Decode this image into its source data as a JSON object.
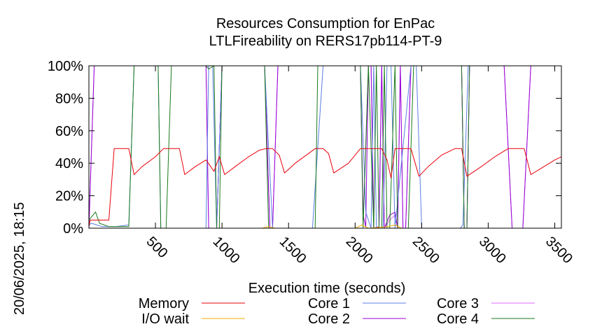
{
  "chart_data": {
    "type": "line",
    "title": "Resources Consumption for EnPac",
    "subtitle": "LTLFireability on RERS17pb114-PT-9",
    "xlabel": "Execution time (seconds)",
    "ylabel": "",
    "side_label": "20/06/2025, 18:15",
    "xlim": [
      0,
      3550
    ],
    "ylim": [
      0,
      100
    ],
    "x_ticks": [
      500,
      1000,
      1500,
      2000,
      2500,
      3000,
      3500
    ],
    "x_tick_labels": [
      "500",
      "1000",
      "1500",
      "2000",
      "2500",
      "3000",
      "3500"
    ],
    "y_ticks": [
      0,
      20,
      40,
      60,
      80,
      100
    ],
    "y_tick_labels": [
      "0%",
      "20%",
      "40%",
      "60%",
      "80%",
      "100%"
    ],
    "legend_placement": "bottom",
    "series": [
      {
        "name": "Memory",
        "color": "#e8000b",
        "points": [
          [
            0,
            1
          ],
          [
            10,
            5
          ],
          [
            150,
            5
          ],
          [
            190,
            49
          ],
          [
            300,
            49
          ],
          [
            340,
            33
          ],
          [
            400,
            38
          ],
          [
            500,
            44
          ],
          [
            560,
            49
          ],
          [
            680,
            49
          ],
          [
            720,
            33
          ],
          [
            800,
            38
          ],
          [
            880,
            42
          ],
          [
            940,
            35
          ],
          [
            980,
            44
          ],
          [
            1020,
            33
          ],
          [
            1100,
            38
          ],
          [
            1200,
            44
          ],
          [
            1280,
            48
          ],
          [
            1330,
            49
          ],
          [
            1380,
            49
          ],
          [
            1430,
            45
          ],
          [
            1470,
            34
          ],
          [
            1550,
            40
          ],
          [
            1650,
            46
          ],
          [
            1700,
            49
          ],
          [
            1760,
            49
          ],
          [
            1800,
            46
          ],
          [
            1840,
            34
          ],
          [
            1950,
            40
          ],
          [
            2040,
            49
          ],
          [
            2140,
            49
          ],
          [
            2180,
            49
          ],
          [
            2200,
            49
          ],
          [
            2240,
            42
          ],
          [
            2270,
            31
          ],
          [
            2300,
            49
          ],
          [
            2420,
            49
          ],
          [
            2480,
            32
          ],
          [
            2550,
            38
          ],
          [
            2650,
            45
          ],
          [
            2750,
            49
          ],
          [
            2800,
            49
          ],
          [
            2840,
            32
          ],
          [
            2950,
            38
          ],
          [
            3050,
            44
          ],
          [
            3150,
            49
          ],
          [
            3270,
            49
          ],
          [
            3320,
            33
          ],
          [
            3400,
            37
          ],
          [
            3500,
            42
          ],
          [
            3550,
            44
          ]
        ]
      },
      {
        "name": "I/O wait",
        "color": "#f2a900",
        "points": [
          [
            0,
            0
          ],
          [
            1300,
            0
          ],
          [
            1350,
            1
          ],
          [
            1400,
            0
          ],
          [
            2000,
            0
          ],
          [
            2050,
            2
          ],
          [
            2100,
            0
          ],
          [
            2250,
            1
          ],
          [
            2300,
            2
          ],
          [
            2350,
            0
          ],
          [
            3550,
            0
          ]
        ]
      },
      {
        "name": "Core 1",
        "color": "#5b7fe3",
        "points": [
          [
            0,
            2
          ],
          [
            20,
            3
          ],
          [
            60,
            2
          ],
          [
            100,
            1
          ],
          [
            200,
            1
          ],
          [
            300,
            2
          ],
          [
            340,
            100
          ],
          [
            520,
            100
          ],
          [
            540,
            0
          ],
          [
            880,
            0
          ],
          [
            900,
            100
          ],
          [
            930,
            100
          ],
          [
            960,
            0
          ],
          [
            1000,
            100
          ],
          [
            1320,
            100
          ],
          [
            1380,
            0
          ],
          [
            1680,
            0
          ],
          [
            1760,
            100
          ],
          [
            2040,
            100
          ],
          [
            2080,
            10
          ],
          [
            2120,
            0
          ],
          [
            2140,
            100
          ],
          [
            2160,
            0
          ],
          [
            2210,
            0
          ],
          [
            2240,
            100
          ],
          [
            2270,
            100
          ],
          [
            2300,
            0
          ],
          [
            2420,
            100
          ],
          [
            2460,
            100
          ],
          [
            2500,
            0
          ],
          [
            2790,
            0
          ],
          [
            2810,
            2
          ],
          [
            2850,
            100
          ],
          [
            3550,
            100
          ]
        ]
      },
      {
        "name": "Core 2",
        "color": "#9400d3",
        "points": [
          [
            0,
            0
          ],
          [
            40,
            100
          ],
          [
            880,
            100
          ],
          [
            900,
            0
          ],
          [
            960,
            0
          ],
          [
            1000,
            100
          ],
          [
            1320,
            100
          ],
          [
            1360,
            0
          ],
          [
            1380,
            0
          ],
          [
            1420,
            100
          ],
          [
            2040,
            100
          ],
          [
            2060,
            8
          ],
          [
            2080,
            1
          ],
          [
            2100,
            100
          ],
          [
            2120,
            100
          ],
          [
            2140,
            0
          ],
          [
            2180,
            1
          ],
          [
            2200,
            100
          ],
          [
            2220,
            0
          ],
          [
            2260,
            8
          ],
          [
            2300,
            10
          ],
          [
            2320,
            0
          ],
          [
            2340,
            100
          ],
          [
            2360,
            0
          ],
          [
            2380,
            0
          ],
          [
            2420,
            100
          ],
          [
            2800,
            100
          ],
          [
            2820,
            0
          ],
          [
            2840,
            0
          ],
          [
            2860,
            100
          ],
          [
            3120,
            100
          ],
          [
            3180,
            0
          ],
          [
            3260,
            0
          ],
          [
            3320,
            100
          ],
          [
            3550,
            100
          ]
        ]
      },
      {
        "name": "Core 3",
        "color": "#e36bff",
        "points": [
          [
            0,
            0
          ],
          [
            40,
            100
          ],
          [
            880,
            100
          ],
          [
            900,
            0
          ],
          [
            960,
            0
          ],
          [
            1000,
            100
          ],
          [
            1320,
            100
          ],
          [
            1360,
            0
          ],
          [
            1380,
            0
          ],
          [
            1420,
            100
          ],
          [
            2040,
            100
          ],
          [
            2060,
            5
          ],
          [
            2100,
            100
          ],
          [
            2120,
            100
          ],
          [
            2140,
            0
          ],
          [
            2180,
            0
          ],
          [
            2200,
            100
          ],
          [
            2220,
            0
          ],
          [
            2260,
            5
          ],
          [
            2300,
            8
          ],
          [
            2320,
            0
          ],
          [
            2340,
            100
          ],
          [
            2360,
            0
          ],
          [
            2380,
            0
          ],
          [
            2420,
            100
          ],
          [
            2800,
            100
          ],
          [
            2820,
            0
          ],
          [
            2840,
            0
          ],
          [
            2860,
            100
          ],
          [
            3120,
            100
          ],
          [
            3180,
            0
          ],
          [
            3260,
            0
          ],
          [
            3320,
            100
          ],
          [
            3550,
            100
          ]
        ]
      },
      {
        "name": "Core 4",
        "color": "#1a7a1a",
        "points": [
          [
            0,
            5
          ],
          [
            50,
            10
          ],
          [
            80,
            3
          ],
          [
            150,
            1
          ],
          [
            260,
            1
          ],
          [
            300,
            1
          ],
          [
            340,
            100
          ],
          [
            520,
            100
          ],
          [
            540,
            0
          ],
          [
            580,
            0
          ],
          [
            620,
            100
          ],
          [
            880,
            100
          ],
          [
            900,
            98
          ],
          [
            940,
            100
          ],
          [
            960,
            0
          ],
          [
            980,
            0
          ],
          [
            1000,
            100
          ],
          [
            1320,
            100
          ],
          [
            1350,
            0
          ],
          [
            1700,
            0
          ],
          [
            1720,
            100
          ],
          [
            2040,
            100
          ],
          [
            2060,
            0
          ],
          [
            2100,
            100
          ],
          [
            2140,
            0
          ],
          [
            2160,
            100
          ],
          [
            2180,
            0
          ],
          [
            2200,
            0
          ],
          [
            2220,
            100
          ],
          [
            2240,
            0
          ],
          [
            2260,
            0
          ],
          [
            2300,
            100
          ],
          [
            2320,
            0
          ],
          [
            2400,
            0
          ],
          [
            2440,
            100
          ],
          [
            2800,
            100
          ],
          [
            2820,
            0
          ],
          [
            2840,
            0
          ],
          [
            2860,
            100
          ],
          [
            3550,
            100
          ]
        ]
      }
    ]
  }
}
